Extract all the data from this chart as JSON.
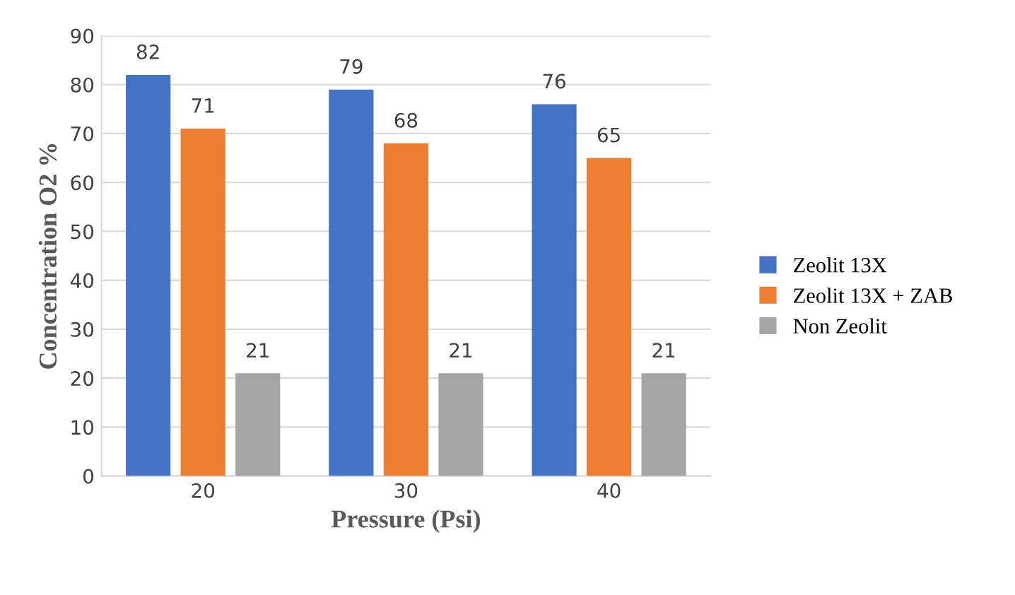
{
  "chart_data": {
    "type": "bar",
    "xlabel": "Pressure (Psi)",
    "ylabel": "Concentration O2 %",
    "categories": [
      "20",
      "30",
      "40"
    ],
    "series": [
      {
        "name": "Zeolit 13X",
        "color": "#4472c4",
        "values": [
          82,
          79,
          76
        ]
      },
      {
        "name": "Zeolit 13X + ZAB",
        "color": "#ed7d31",
        "values": [
          71,
          68,
          65
        ]
      },
      {
        "name": "Non Zeolit",
        "color": "#a5a5a5",
        "values": [
          21,
          21,
          21
        ]
      }
    ],
    "ylim": [
      0,
      90
    ],
    "yticks": [
      0,
      10,
      20,
      30,
      40,
      50,
      60,
      70,
      80,
      90
    ],
    "grid": "y",
    "legend": "right",
    "data_labels": true
  }
}
